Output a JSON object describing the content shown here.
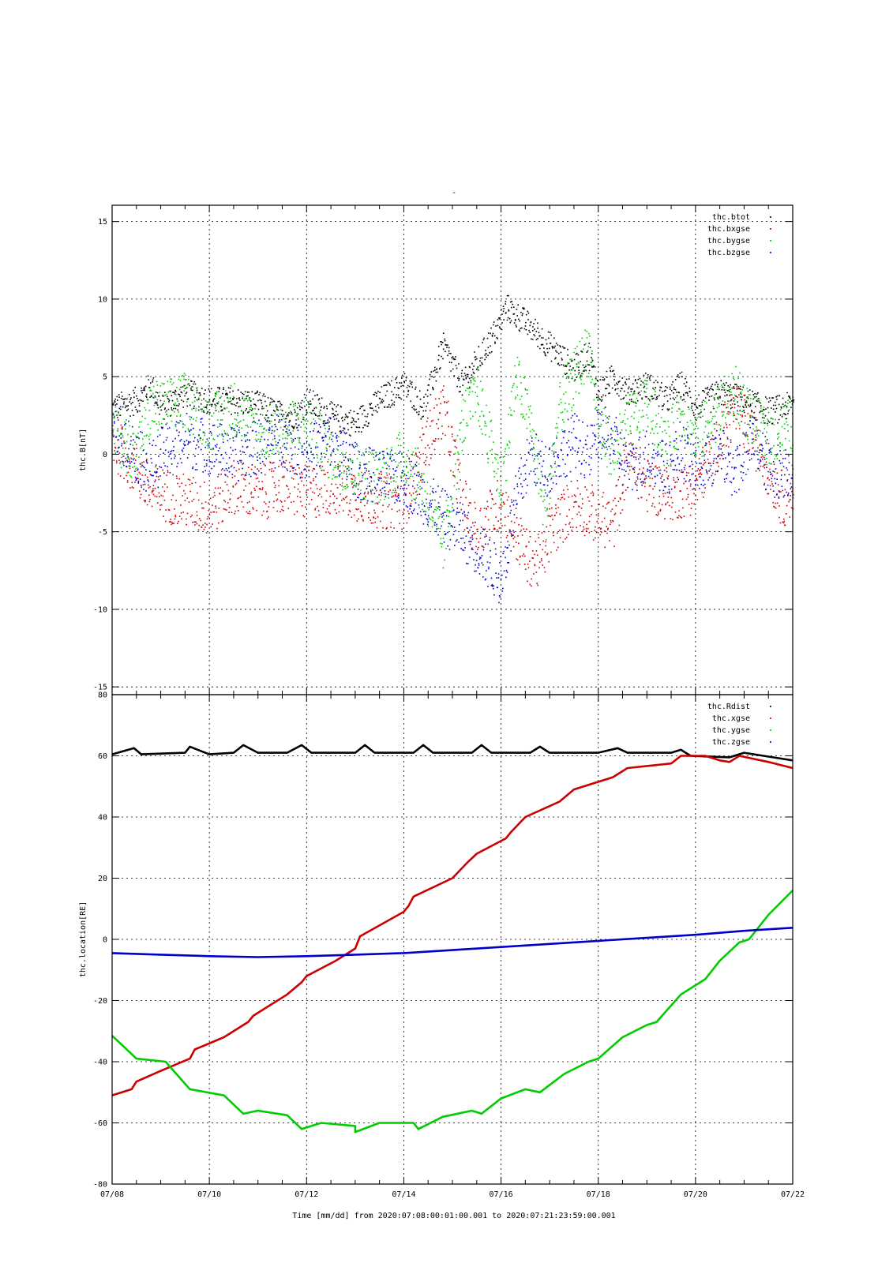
{
  "figure": {
    "title": "-",
    "xlabel_caption": "Time [mm/dd]  from 2020:07:08:00:01:00.001  to  2020:07:21:23:59:00.001"
  },
  "chart_data": [
    {
      "type": "scatter",
      "ylabel": "thc.B[nT]",
      "ylim": [
        -15,
        16
      ],
      "yticks": [
        15,
        10,
        5,
        0,
        -5,
        -10,
        -15
      ],
      "x_unit": "days since 07/08 00:00",
      "xlim": [
        0,
        14
      ],
      "xticks": [
        "07/08",
        "07/10",
        "07/12",
        "07/14",
        "07/16",
        "07/18",
        "07/20",
        "07/22"
      ],
      "grid": true,
      "legend": "top-right",
      "series": [
        {
          "name": "thc.btot",
          "color": "#000000",
          "points": [
            [
              0,
              3
            ],
            [
              0.5,
              3.5
            ],
            [
              0.8,
              4.5
            ],
            [
              1,
              3
            ],
            [
              1.5,
              4
            ],
            [
              2,
              3.5
            ],
            [
              2.5,
              3.5
            ],
            [
              3,
              3.2
            ],
            [
              3.5,
              2.5
            ],
            [
              3.8,
              2.6
            ],
            [
              4,
              3.5
            ],
            [
              4.5,
              2.5
            ],
            [
              5,
              2
            ],
            [
              5.5,
              3.5
            ],
            [
              6,
              4.5
            ],
            [
              6.4,
              3
            ],
            [
              6.8,
              7
            ],
            [
              7.2,
              4.5
            ],
            [
              7.5,
              6
            ],
            [
              7.9,
              8
            ],
            [
              8.1,
              9.5
            ],
            [
              8.5,
              8.5
            ],
            [
              9,
              7
            ],
            [
              9.5,
              5.5
            ],
            [
              9.8,
              6.5
            ],
            [
              10,
              4
            ],
            [
              10.3,
              5
            ],
            [
              10.6,
              4
            ],
            [
              11,
              4.5
            ],
            [
              11.4,
              3.5
            ],
            [
              11.7,
              4.5
            ],
            [
              12,
              3
            ],
            [
              12.5,
              4
            ],
            [
              13,
              3.5
            ],
            [
              13.5,
              2.8
            ],
            [
              14,
              3.2
            ]
          ]
        },
        {
          "name": "thc.bxgse",
          "color": "#cc0000",
          "points": [
            [
              0,
              1
            ],
            [
              0.5,
              -1
            ],
            [
              0.8,
              -2.5
            ],
            [
              1,
              -2.5
            ],
            [
              1.5,
              -3
            ],
            [
              2,
              -3.5
            ],
            [
              2.5,
              -2
            ],
            [
              3,
              -2.5
            ],
            [
              3.5,
              -2
            ],
            [
              4,
              -2.5
            ],
            [
              4.5,
              -2
            ],
            [
              5,
              -2.5
            ],
            [
              5.5,
              -3
            ],
            [
              6,
              -3
            ],
            [
              6.5,
              1
            ],
            [
              6.8,
              3
            ],
            [
              7.2,
              -3
            ],
            [
              7.5,
              -5
            ],
            [
              8,
              -3
            ],
            [
              8.5,
              -6.5
            ],
            [
              8.8,
              -7
            ],
            [
              9,
              -5
            ],
            [
              9.5,
              -3
            ],
            [
              10,
              -4
            ],
            [
              10.3,
              -4.5
            ],
            [
              10.6,
              0
            ],
            [
              11,
              -2
            ],
            [
              11.5,
              -2.5
            ],
            [
              12,
              -2
            ],
            [
              12.5,
              1
            ],
            [
              12.8,
              3
            ],
            [
              13.2,
              1
            ],
            [
              13.5,
              -1
            ],
            [
              13.8,
              -3
            ],
            [
              14,
              -2
            ]
          ]
        },
        {
          "name": "thc.bygse",
          "color": "#00cc00",
          "points": [
            [
              0,
              1.5
            ],
            [
              0.5,
              0
            ],
            [
              0.8,
              3
            ],
            [
              1,
              3
            ],
            [
              1.5,
              3.5
            ],
            [
              2,
              2
            ],
            [
              2.5,
              3
            ],
            [
              3,
              1.5
            ],
            [
              3.5,
              1.5
            ],
            [
              4,
              2
            ],
            [
              4.5,
              0
            ],
            [
              5,
              -1
            ],
            [
              5.5,
              -1.5
            ],
            [
              6,
              0
            ],
            [
              6.5,
              -3
            ],
            [
              6.8,
              -6
            ],
            [
              7.2,
              2
            ],
            [
              7.5,
              4
            ],
            [
              8,
              -2
            ],
            [
              8.3,
              5
            ],
            [
              8.6,
              2
            ],
            [
              8.9,
              -4
            ],
            [
              9.2,
              3
            ],
            [
              9.5,
              5
            ],
            [
              9.8,
              7
            ],
            [
              10,
              2
            ],
            [
              10.3,
              0
            ],
            [
              10.6,
              2
            ],
            [
              11,
              3.5
            ],
            [
              11.4,
              0.5
            ],
            [
              11.7,
              3
            ],
            [
              12,
              1
            ],
            [
              12.5,
              3
            ],
            [
              12.8,
              4
            ],
            [
              13.2,
              2
            ],
            [
              13.5,
              1
            ],
            [
              14,
              2
            ]
          ]
        },
        {
          "name": "thc.bzgse",
          "color": "#0000cc",
          "points": [
            [
              0,
              2
            ],
            [
              0.5,
              0
            ],
            [
              0.8,
              -1
            ],
            [
              1,
              0
            ],
            [
              1.5,
              1
            ],
            [
              2,
              0.5
            ],
            [
              2.5,
              0
            ],
            [
              3,
              0.5
            ],
            [
              3.5,
              1
            ],
            [
              4,
              0
            ],
            [
              4.5,
              1
            ],
            [
              5,
              -1
            ],
            [
              5.5,
              -1.5
            ],
            [
              6,
              -1.5
            ],
            [
              6.5,
              -3
            ],
            [
              6.8,
              -4
            ],
            [
              7.2,
              -5
            ],
            [
              7.5,
              -6
            ],
            [
              8,
              -8
            ],
            [
              8.3,
              -3
            ],
            [
              8.6,
              0
            ],
            [
              8.9,
              -1
            ],
            [
              9.2,
              0
            ],
            [
              9.5,
              1
            ],
            [
              9.8,
              0
            ],
            [
              10,
              1.5
            ],
            [
              10.3,
              1
            ],
            [
              10.6,
              -1
            ],
            [
              11,
              0
            ],
            [
              11.4,
              -1
            ],
            [
              11.7,
              0.5
            ],
            [
              12,
              -1
            ],
            [
              12.5,
              0
            ],
            [
              12.8,
              -1
            ],
            [
              13.2,
              1
            ],
            [
              13.5,
              -1
            ],
            [
              14,
              -1
            ]
          ]
        }
      ]
    },
    {
      "type": "line",
      "ylabel": "thc.location[RE]",
      "ylim": [
        -80,
        80
      ],
      "yticks": [
        80,
        60,
        40,
        20,
        0,
        -20,
        -40,
        -60,
        -80
      ],
      "x_unit": "days since 07/08 00:00",
      "xlim": [
        0,
        14
      ],
      "xticks": [
        "07/08",
        "07/10",
        "07/12",
        "07/14",
        "07/16",
        "07/18",
        "07/20",
        "07/22"
      ],
      "grid": true,
      "legend": "top-right",
      "series": [
        {
          "name": "thc.Rdist",
          "color": "#000000",
          "points": [
            [
              0,
              60.5
            ],
            [
              0.45,
              62.5
            ],
            [
              0.6,
              60.5
            ],
            [
              1.5,
              61
            ],
            [
              1.6,
              63
            ],
            [
              2,
              60.5
            ],
            [
              2.5,
              61
            ],
            [
              2.7,
              63.5
            ],
            [
              3,
              61
            ],
            [
              3.6,
              61
            ],
            [
              3.9,
              63.5
            ],
            [
              4.1,
              61
            ],
            [
              5,
              61
            ],
            [
              5.2,
              63.5
            ],
            [
              5.4,
              61
            ],
            [
              6.2,
              61
            ],
            [
              6.4,
              63.5
            ],
            [
              6.6,
              61
            ],
            [
              7.4,
              61
            ],
            [
              7.6,
              63.5
            ],
            [
              7.8,
              61
            ],
            [
              8.6,
              61
            ],
            [
              8.8,
              63
            ],
            [
              9,
              61
            ],
            [
              10,
              61
            ],
            [
              10.4,
              62.5
            ],
            [
              10.6,
              61
            ],
            [
              11.5,
              61
            ],
            [
              11.7,
              62
            ],
            [
              11.9,
              60
            ],
            [
              12.7,
              59.5
            ],
            [
              13,
              61
            ],
            [
              13.8,
              59
            ],
            [
              14,
              58.5
            ]
          ]
        },
        {
          "name": "thc.xgse",
          "color": "#cc0000",
          "points": [
            [
              0,
              -51
            ],
            [
              0.4,
              -49
            ],
            [
              0.5,
              -46.5
            ],
            [
              1,
              -43
            ],
            [
              1.6,
              -39
            ],
            [
              1.7,
              -36
            ],
            [
              2.3,
              -32
            ],
            [
              2.8,
              -27
            ],
            [
              2.9,
              -25
            ],
            [
              3.6,
              -18
            ],
            [
              3.9,
              -14
            ],
            [
              4,
              -12
            ],
            [
              4.6,
              -7
            ],
            [
              5,
              -3
            ],
            [
              5.1,
              1
            ],
            [
              6,
              9
            ],
            [
              6.1,
              11
            ],
            [
              6.2,
              14
            ],
            [
              7,
              20
            ],
            [
              7.3,
              25
            ],
            [
              7.5,
              28
            ],
            [
              8.1,
              33
            ],
            [
              8.2,
              35
            ],
            [
              8.5,
              40
            ],
            [
              9.2,
              45
            ],
            [
              9.5,
              49
            ],
            [
              10.1,
              52
            ],
            [
              10.3,
              53
            ],
            [
              10.6,
              56
            ],
            [
              11.5,
              57.5
            ],
            [
              11.7,
              60
            ],
            [
              12.2,
              60
            ],
            [
              12.5,
              58.5
            ],
            [
              12.7,
              58
            ],
            [
              12.9,
              60
            ],
            [
              13.5,
              58
            ],
            [
              14,
              56
            ]
          ]
        },
        {
          "name": "thc.ygse",
          "color": "#00cc00",
          "points": [
            [
              0,
              -31.5
            ],
            [
              0.5,
              -39
            ],
            [
              1.1,
              -40
            ],
            [
              1.6,
              -49
            ],
            [
              2.3,
              -51
            ],
            [
              2.7,
              -57
            ],
            [
              3.0,
              -56
            ],
            [
              3.6,
              -57.5
            ],
            [
              3.9,
              -62
            ],
            [
              4.3,
              -60
            ],
            [
              5,
              -61
            ],
            [
              5.0,
              -63
            ],
            [
              5.5,
              -60
            ],
            [
              6.2,
              -60
            ],
            [
              6.3,
              -62
            ],
            [
              6.8,
              -58
            ],
            [
              7.4,
              -56
            ],
            [
              7.6,
              -57
            ],
            [
              8,
              -52
            ],
            [
              8.5,
              -49
            ],
            [
              8.8,
              -50
            ],
            [
              9.3,
              -44
            ],
            [
              9.8,
              -40
            ],
            [
              10.0,
              -39
            ],
            [
              10.5,
              -32
            ],
            [
              11,
              -28
            ],
            [
              11.2,
              -27
            ],
            [
              11.7,
              -18
            ],
            [
              12.2,
              -13
            ],
            [
              12.5,
              -7
            ],
            [
              12.9,
              -1
            ],
            [
              13.1,
              0
            ],
            [
              13.5,
              8
            ],
            [
              14,
              16
            ]
          ]
        },
        {
          "name": "thc.zgse",
          "color": "#0000cc",
          "points": [
            [
              0,
              -4.5
            ],
            [
              1,
              -5
            ],
            [
              2,
              -5.5
            ],
            [
              3,
              -5.8
            ],
            [
              4,
              -5.5
            ],
            [
              5,
              -5
            ],
            [
              6,
              -4.5
            ],
            [
              7,
              -3.5
            ],
            [
              8,
              -2.5
            ],
            [
              9,
              -1.5
            ],
            [
              10,
              -0.5
            ],
            [
              11,
              0.5
            ],
            [
              12,
              1.5
            ],
            [
              13,
              2.8
            ],
            [
              14,
              3.8
            ]
          ]
        }
      ]
    }
  ]
}
